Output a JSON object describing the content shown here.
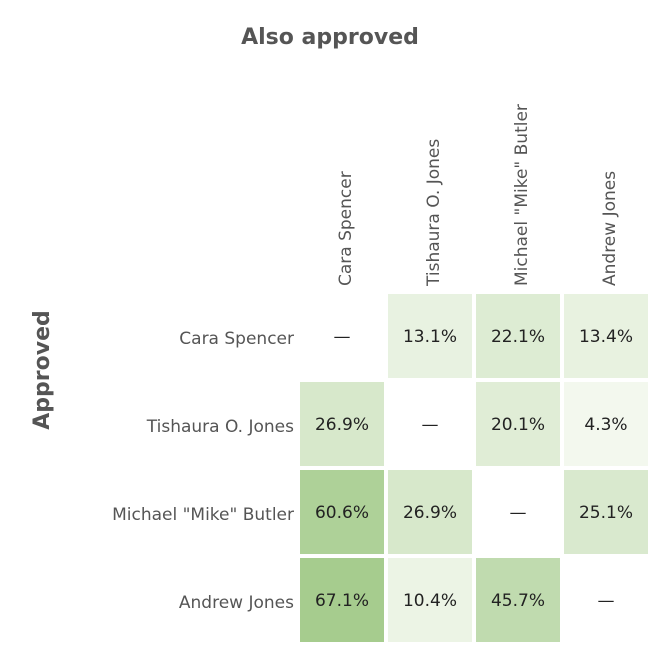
{
  "chart_data": {
    "type": "heatmap",
    "title": "Also approved",
    "xlabel": "Also approved",
    "ylabel": "Approved",
    "columns": [
      "Cara Spencer",
      "Tishaura O. Jones",
      "Michael \"Mike\" Butler",
      "Andrew Jones"
    ],
    "rows": [
      "Cara Spencer",
      "Tishaura O. Jones",
      "Michael \"Mike\" Butler",
      "Andrew Jones"
    ],
    "values": [
      [
        null,
        13.1,
        22.1,
        13.4
      ],
      [
        26.9,
        null,
        20.1,
        4.3
      ],
      [
        60.6,
        26.9,
        null,
        25.1
      ],
      [
        67.1,
        10.4,
        45.7,
        null
      ]
    ],
    "cell_labels": [
      [
        "—",
        "13.1%",
        "22.1%",
        "13.4%"
      ],
      [
        "26.9%",
        "—",
        "20.1%",
        "4.3%"
      ],
      [
        "60.6%",
        "26.9%",
        "—",
        "25.1%"
      ],
      [
        "67.1%",
        "10.4%",
        "45.7%",
        "—"
      ]
    ],
    "color_low": "#f3f8ee",
    "color_high": "#a6cc8e",
    "grid": false,
    "legend": "none"
  }
}
